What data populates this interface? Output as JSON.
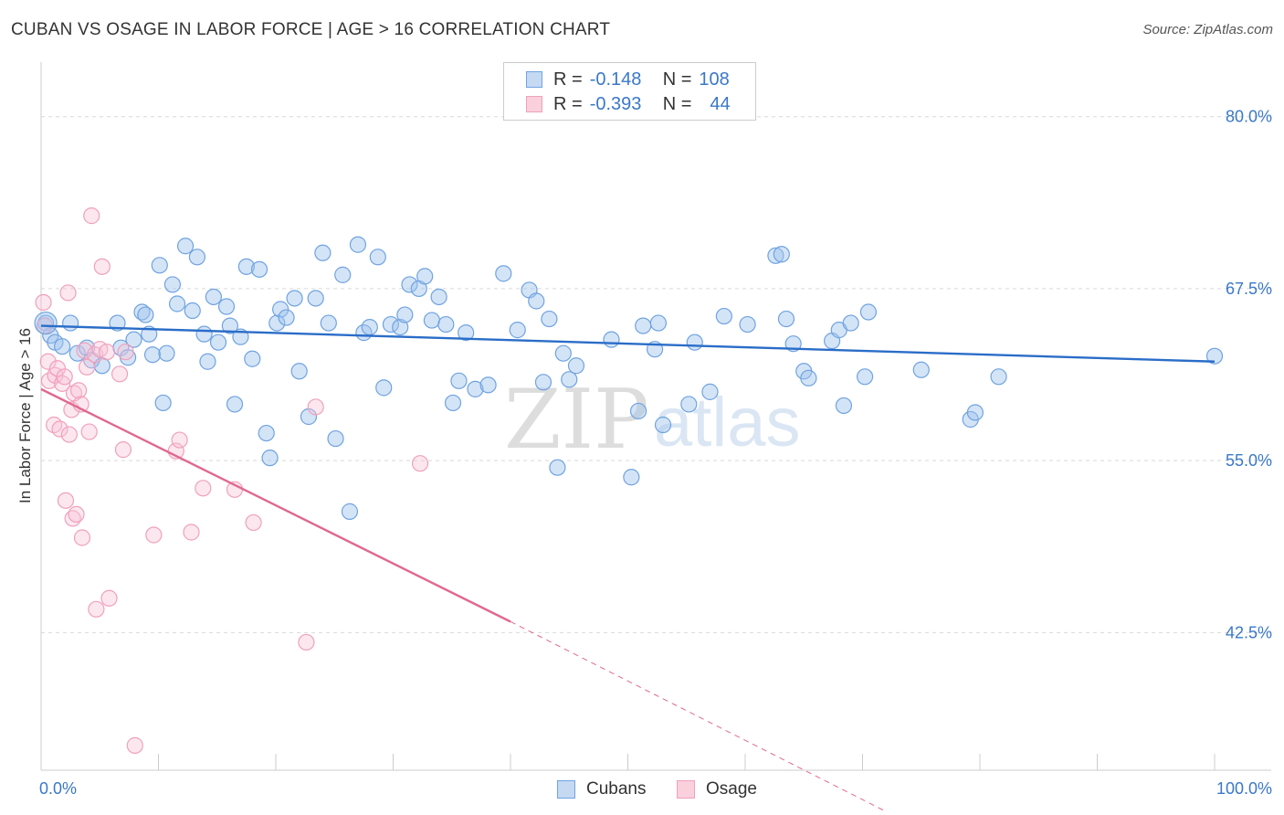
{
  "chart_data": {
    "type": "scatter",
    "title": "CUBAN VS OSAGE IN LABOR FORCE | AGE > 16 CORRELATION CHART",
    "source": "Source: ZipAtlas.com",
    "xlabel": "",
    "ylabel": "In Labor Force | Age > 16",
    "xlim": [
      0,
      100
    ],
    "ylim": [
      32.5,
      83.3
    ],
    "x_tick_labels": [
      "0.0%",
      "100.0%"
    ],
    "y_ticks": [
      42.5,
      55.0,
      67.5,
      80.0
    ],
    "y_tick_labels": [
      "42.5%",
      "55.0%",
      "67.5%",
      "80.0%"
    ],
    "grid": true,
    "watermark": "ZIPatlas",
    "colors": {
      "Cubans": "#6fa3e0",
      "Osage": "#f0a0bb",
      "Cubans_line": "#2a6dc8",
      "Osage_line": "#e06890",
      "tick_label": "#3a78c8"
    },
    "stats": [
      {
        "r_label": "R =",
        "r_value": "-0.148",
        "n_label": "N =",
        "n_value": "108"
      },
      {
        "r_label": "R =",
        "r_value": "-0.393",
        "n_label": "N =",
        "n_value": "44"
      }
    ],
    "series": [
      {
        "name": "Cubans",
        "trend": {
          "x": [
            0,
            100
          ],
          "y": [
            64.8,
            62.2
          ]
        },
        "points": [
          [
            0.4,
            65.0
          ],
          [
            0.8,
            64.1
          ],
          [
            1.2,
            63.6
          ],
          [
            1.8,
            63.3
          ],
          [
            2.5,
            65.0
          ],
          [
            3.1,
            62.8
          ],
          [
            3.9,
            63.2
          ],
          [
            4.3,
            62.3
          ],
          [
            5.2,
            61.9
          ],
          [
            6.5,
            65.0
          ],
          [
            6.8,
            63.2
          ],
          [
            7.4,
            62.5
          ],
          [
            7.9,
            63.8
          ],
          [
            8.6,
            65.8
          ],
          [
            8.9,
            65.6
          ],
          [
            9.2,
            64.2
          ],
          [
            9.5,
            62.7
          ],
          [
            10.1,
            69.2
          ],
          [
            10.4,
            59.2
          ],
          [
            10.7,
            62.8
          ],
          [
            11.2,
            67.8
          ],
          [
            11.6,
            66.4
          ],
          [
            12.3,
            70.6
          ],
          [
            12.9,
            65.9
          ],
          [
            13.3,
            69.8
          ],
          [
            13.9,
            64.2
          ],
          [
            14.2,
            62.2
          ],
          [
            14.7,
            66.9
          ],
          [
            15.1,
            63.6
          ],
          [
            15.8,
            66.2
          ],
          [
            16.1,
            64.8
          ],
          [
            16.5,
            59.1
          ],
          [
            17.0,
            64.0
          ],
          [
            17.5,
            69.1
          ],
          [
            18.0,
            62.4
          ],
          [
            18.6,
            68.9
          ],
          [
            19.2,
            57.0
          ],
          [
            19.5,
            55.2
          ],
          [
            20.1,
            65.0
          ],
          [
            20.4,
            66.0
          ],
          [
            20.9,
            65.4
          ],
          [
            21.6,
            66.8
          ],
          [
            22.0,
            61.5
          ],
          [
            22.8,
            58.2
          ],
          [
            23.4,
            66.8
          ],
          [
            24.0,
            70.1
          ],
          [
            24.5,
            65.0
          ],
          [
            25.1,
            56.6
          ],
          [
            25.7,
            68.5
          ],
          [
            26.3,
            51.3
          ],
          [
            27.0,
            70.7
          ],
          [
            27.5,
            64.3
          ],
          [
            28.0,
            64.7
          ],
          [
            28.7,
            69.8
          ],
          [
            29.2,
            60.3
          ],
          [
            29.8,
            64.9
          ],
          [
            30.6,
            64.7
          ],
          [
            31.0,
            65.6
          ],
          [
            31.4,
            67.8
          ],
          [
            32.2,
            67.5
          ],
          [
            32.7,
            68.4
          ],
          [
            33.3,
            65.2
          ],
          [
            33.9,
            66.9
          ],
          [
            34.5,
            64.9
          ],
          [
            35.1,
            59.2
          ],
          [
            35.6,
            60.8
          ],
          [
            36.2,
            64.3
          ],
          [
            37.0,
            60.2
          ],
          [
            38.1,
            60.5
          ],
          [
            39.4,
            68.6
          ],
          [
            40.6,
            64.5
          ],
          [
            41.6,
            67.4
          ],
          [
            42.2,
            66.6
          ],
          [
            42.8,
            60.7
          ],
          [
            43.3,
            65.3
          ],
          [
            44.0,
            54.5
          ],
          [
            44.5,
            62.8
          ],
          [
            45.0,
            60.9
          ],
          [
            45.6,
            61.9
          ],
          [
            48.6,
            63.8
          ],
          [
            50.3,
            53.8
          ],
          [
            50.9,
            58.6
          ],
          [
            51.3,
            64.8
          ],
          [
            52.3,
            63.1
          ],
          [
            52.6,
            65.0
          ],
          [
            53.0,
            57.6
          ],
          [
            55.2,
            59.1
          ],
          [
            55.7,
            63.6
          ],
          [
            57.0,
            60.0
          ],
          [
            58.2,
            65.5
          ],
          [
            60.2,
            64.9
          ],
          [
            62.6,
            69.9
          ],
          [
            63.1,
            70.0
          ],
          [
            63.5,
            65.3
          ],
          [
            64.1,
            63.5
          ],
          [
            65.0,
            61.5
          ],
          [
            65.4,
            61.0
          ],
          [
            67.4,
            63.7
          ],
          [
            68.0,
            64.5
          ],
          [
            68.4,
            59.0
          ],
          [
            69.0,
            65.0
          ],
          [
            70.2,
            61.1
          ],
          [
            70.5,
            65.8
          ],
          [
            75.0,
            61.6
          ],
          [
            79.2,
            58.0
          ],
          [
            79.6,
            58.5
          ],
          [
            81.6,
            61.1
          ],
          [
            100.0,
            62.6
          ]
        ]
      },
      {
        "name": "Osage",
        "trend": {
          "x": [
            0,
            40
          ],
          "y": [
            60.2,
            43.3
          ]
        },
        "trend_dashed": {
          "x": [
            40,
            72.0
          ],
          "y": [
            43.3,
            29.5
          ]
        },
        "points": [
          [
            0.2,
            66.5
          ],
          [
            0.3,
            64.8
          ],
          [
            0.6,
            62.2
          ],
          [
            0.7,
            60.8
          ],
          [
            1.1,
            57.6
          ],
          [
            1.2,
            61.2
          ],
          [
            1.4,
            61.7
          ],
          [
            1.6,
            57.3
          ],
          [
            1.8,
            60.6
          ],
          [
            2.0,
            61.1
          ],
          [
            2.1,
            52.1
          ],
          [
            2.3,
            67.2
          ],
          [
            2.4,
            56.9
          ],
          [
            2.6,
            58.7
          ],
          [
            2.7,
            50.8
          ],
          [
            2.8,
            59.9
          ],
          [
            3.0,
            51.1
          ],
          [
            3.2,
            60.1
          ],
          [
            3.4,
            59.1
          ],
          [
            3.5,
            49.4
          ],
          [
            3.7,
            63.0
          ],
          [
            3.9,
            61.8
          ],
          [
            4.1,
            57.1
          ],
          [
            4.3,
            72.8
          ],
          [
            4.6,
            62.7
          ],
          [
            4.7,
            44.2
          ],
          [
            5.0,
            63.1
          ],
          [
            5.2,
            69.1
          ],
          [
            5.6,
            62.9
          ],
          [
            5.8,
            45.0
          ],
          [
            6.7,
            61.3
          ],
          [
            7.0,
            55.8
          ],
          [
            7.2,
            62.9
          ],
          [
            8.0,
            34.3
          ],
          [
            9.6,
            49.6
          ],
          [
            11.5,
            55.7
          ],
          [
            11.8,
            56.5
          ],
          [
            12.8,
            49.8
          ],
          [
            13.8,
            53.0
          ],
          [
            16.5,
            52.9
          ],
          [
            18.1,
            50.5
          ],
          [
            22.6,
            41.8
          ],
          [
            23.4,
            58.9
          ],
          [
            32.3,
            54.8
          ]
        ]
      }
    ],
    "legend": [
      "Cubans",
      "Osage"
    ]
  }
}
